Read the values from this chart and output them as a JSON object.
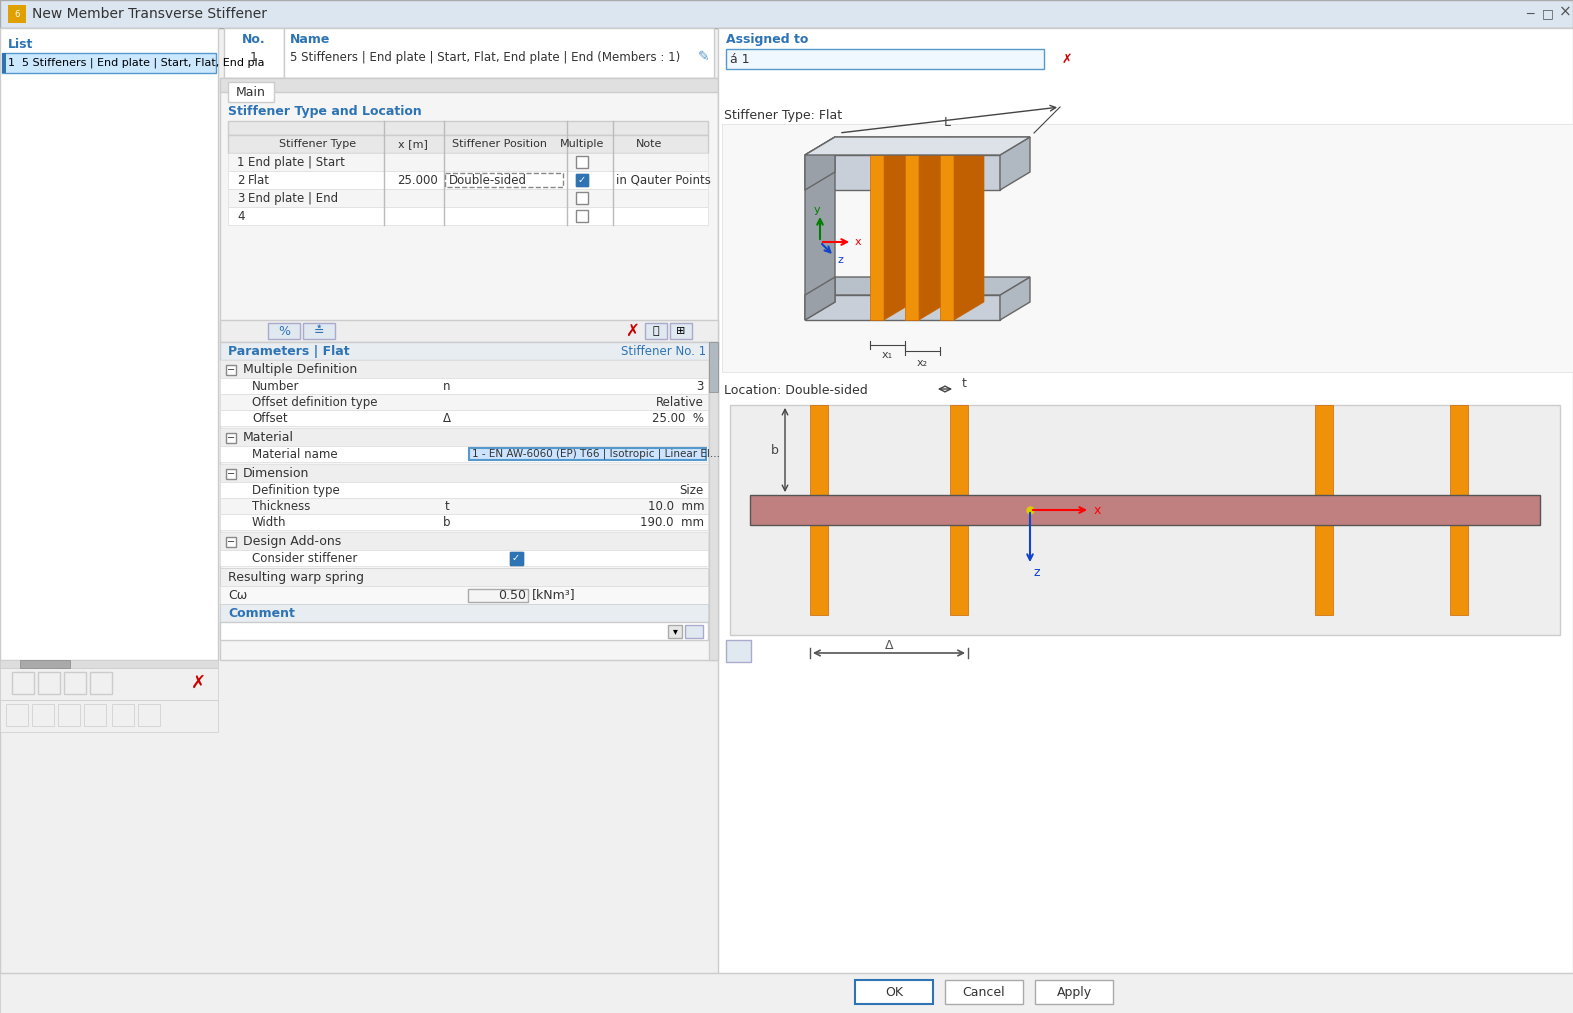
{
  "title": "New Member Transverse Stiffener",
  "list_label": "List",
  "list_item": "1  5 Stiffeners | End plate | Start, Flat, End pla",
  "no_label": "No.",
  "no_value": "1",
  "name_label": "Name",
  "name_value": "5 Stiffeners | End plate | Start, Flat, End plate | End (Members : 1)",
  "assigned_label": "Assigned to",
  "assigned_value": "á 1",
  "tab_main": "Main",
  "section_stiffener": "Stiffener Type and Location",
  "col_stiffener_type": "Stiffener Type",
  "col_x": "x [m]",
  "col_position": "Stiffener Position",
  "col_multiple": "Multiple",
  "col_note": "Note",
  "row1_type": "End plate | Start",
  "row2_type": "Flat",
  "row2_x": "25.000",
  "row2_pos": "Double-sided",
  "row2_note": "in Qauter Points",
  "row3_type": "End plate | End",
  "params_label": "Parameters | Flat",
  "stiffener_no": "Stiffener No. 1",
  "multiple_def": "Multiple Definition",
  "number_label": "Number",
  "number_sym": "n",
  "number_val": "3",
  "offset_def_label": "Offset definition type",
  "offset_def_val": "Relative",
  "offset_label": "Offset",
  "offset_sym": "Δ",
  "offset_val": "25.00  %",
  "material_label": "Material",
  "mat_name_label": "Material name",
  "mat_name_val": "1 - EN AW-6060 (EP) T66 | Isotropic | Linear El...",
  "dimension_label": "Dimension",
  "def_type_label": "Definition type",
  "def_type_val": "Size",
  "thickness_label": "Thickness",
  "thickness_sym": "t",
  "thickness_val": "10.0  mm",
  "width_label": "Width",
  "width_sym": "b",
  "width_val": "190.0  mm",
  "design_label": "Design Add-ons",
  "consider_label": "Consider stiffener",
  "warp_label": "Resulting warp spring",
  "cw_label": "Cω",
  "cw_val": "0.50",
  "cw_unit": "[kNm³]",
  "comment_label": "Comment",
  "stiffener_type_label": "Stiffener Type: Flat",
  "location_label": "Location: Double-sided",
  "btn_ok": "OK",
  "btn_cancel": "Cancel",
  "btn_apply": "Apply",
  "bg_window": "#f0f0f0",
  "bg_white": "#ffffff",
  "bg_titlebar": "#dce6f1",
  "bg_header": "#e8e8e8",
  "bg_selected": "#cce8ff",
  "bg_section": "#e8edf2",
  "bg_row_alt": "#f5f5f5",
  "bg_row_even": "#ffffff",
  "color_blue": "#2e74b5",
  "color_dark": "#333333",
  "color_gray": "#888888",
  "color_orange": "#f0910a",
  "color_red": "#cc0000",
  "border_gray": "#bbbbbb",
  "border_dark": "#999999"
}
